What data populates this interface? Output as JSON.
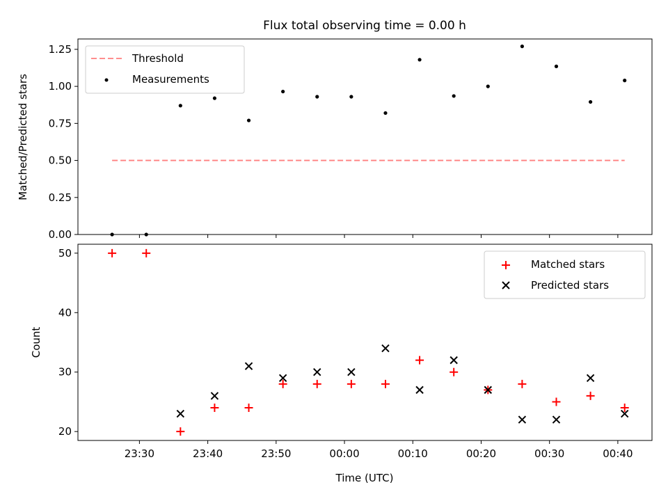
{
  "chart_data": [
    {
      "type": "scatter",
      "title": "Flux total observing time = 0.00 h",
      "xlabel": "",
      "ylabel": "Matched/Predicted stars",
      "ylim": [
        0,
        1.32
      ],
      "yticks": [
        "0.00",
        "0.25",
        "0.50",
        "0.75",
        "1.00",
        "1.25"
      ],
      "ytick_values": [
        0,
        0.25,
        0.5,
        0.75,
        1.0,
        1.25
      ],
      "legend_position": "top-left",
      "threshold": {
        "name": "Threshold",
        "value": 0.5,
        "x_start": "23:26",
        "x_end": "00:41",
        "color": "#ff7f7f",
        "style": "dashed"
      },
      "series": [
        {
          "name": "Measurements",
          "color": "#000000",
          "marker": "dot",
          "x": [
            "23:26",
            "23:31",
            "23:36",
            "23:41",
            "23:46",
            "23:51",
            "23:56",
            "00:01",
            "00:06",
            "00:11",
            "00:16",
            "00:21",
            "00:26",
            "00:31",
            "00:36",
            "00:41"
          ],
          "values": [
            0.0,
            0.0,
            0.87,
            0.92,
            0.77,
            0.965,
            0.93,
            0.93,
            0.82,
            1.18,
            0.935,
            1.0,
            1.27,
            1.135,
            0.895,
            1.04
          ]
        }
      ]
    },
    {
      "type": "scatter",
      "title": "",
      "xlabel": "Time (UTC)",
      "ylabel": "Count",
      "ylim": [
        18.5,
        51.5
      ],
      "yticks": [
        "20",
        "30",
        "40",
        "50"
      ],
      "ytick_values": [
        20,
        30,
        40,
        50
      ],
      "legend_position": "top-right",
      "series": [
        {
          "name": "Matched stars",
          "color": "#ff0000",
          "marker": "plus",
          "x": [
            "23:26",
            "23:31",
            "23:36",
            "23:41",
            "23:46",
            "23:51",
            "23:56",
            "00:01",
            "00:06",
            "00:11",
            "00:16",
            "00:21",
            "00:26",
            "00:31",
            "00:36",
            "00:41"
          ],
          "values": [
            50,
            50,
            20,
            24,
            24,
            28,
            28,
            28,
            28,
            32,
            30,
            27,
            28,
            25,
            26,
            24
          ]
        },
        {
          "name": "Predicted stars",
          "color": "#000000",
          "marker": "x",
          "x": [
            "23:36",
            "23:41",
            "23:46",
            "23:51",
            "23:56",
            "00:01",
            "00:06",
            "00:11",
            "00:16",
            "00:21",
            "00:26",
            "00:31",
            "00:36",
            "00:41"
          ],
          "values": [
            23,
            26,
            31,
            29,
            30,
            30,
            34,
            27,
            32,
            27,
            22,
            22,
            29,
            23
          ]
        }
      ]
    }
  ],
  "x_axis": {
    "start": "23:21",
    "end": "00:45",
    "tick_labels": [
      "23:30",
      "23:40",
      "23:50",
      "00:00",
      "00:10",
      "00:20",
      "00:30",
      "00:40"
    ]
  }
}
